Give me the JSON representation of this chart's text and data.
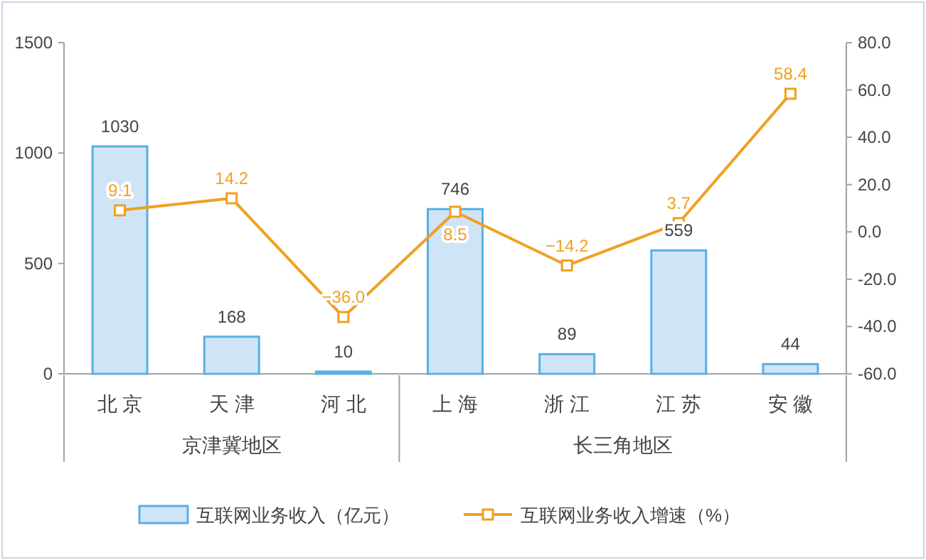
{
  "chart_data": {
    "type": "bar",
    "categories": [
      "北 京",
      "天 津",
      "河 北",
      "上 海",
      "浙 江",
      "江 苏",
      "安 徽"
    ],
    "series": [
      {
        "name": "互联网业务收入（亿元）",
        "color": "#cfe5f7",
        "values": [
          1030,
          168,
          10,
          746,
          89,
          559,
          44
        ],
        "value_labels": [
          "1030",
          "168",
          "10",
          "746",
          "89",
          "559",
          "44"
        ]
      },
      {
        "name": "互联网业务收入增速（%）",
        "type": "line",
        "axis": "y2",
        "color": "#f0a020",
        "values": [
          9.1,
          14.2,
          -36.0,
          8.5,
          -14.2,
          3.7,
          58.4
        ],
        "value_labels": [
          "9.1",
          "14.2",
          "−36.0",
          "8.5",
          "−14.2",
          "3.7",
          "58.4"
        ]
      }
    ],
    "ylim": [
      0,
      1500
    ],
    "yticks": [
      0,
      500,
      1000,
      1500
    ],
    "y2lim": [
      -60,
      80
    ],
    "y2ticks": [
      {
        "value": -60,
        "label": "-60.0"
      },
      {
        "value": -40,
        "label": "-40.0"
      },
      {
        "value": -20,
        "label": "-20.0"
      },
      {
        "value": 0,
        "label": "0.0"
      },
      {
        "value": 20,
        "label": "20.0"
      },
      {
        "value": 40,
        "label": "40.0"
      },
      {
        "value": 60,
        "label": "60.0"
      },
      {
        "value": 80,
        "label": "80.0"
      }
    ],
    "marker": "square",
    "legend": "bottom",
    "annotations": [
      "京津冀地区",
      "长三角地区"
    ]
  }
}
